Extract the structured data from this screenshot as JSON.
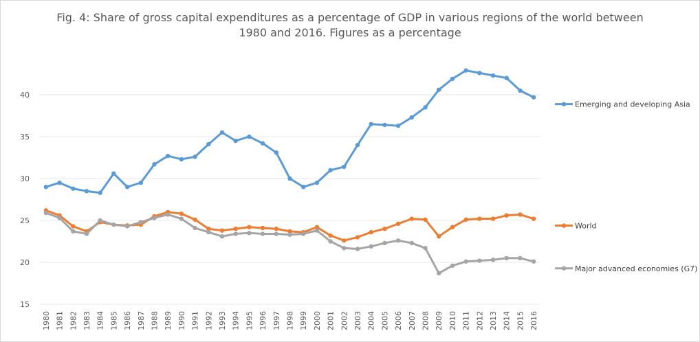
{
  "chart_data": {
    "type": "line",
    "title": "Fig. 4: Share of gross capital expenditures as a percentage of GDP in various regions of the world between",
    "title_line2": "1980 and 2016. Figures as a percentage",
    "xlabel": "",
    "ylabel": "",
    "ylim": [
      15,
      45
    ],
    "yticks": [
      15,
      20,
      25,
      30,
      35,
      40
    ],
    "grid": true,
    "legend_position": "right",
    "categories": [
      "1980",
      "1981",
      "1982",
      "1983",
      "1984",
      "1985",
      "1986",
      "1987",
      "1988",
      "1989",
      "1990",
      "1991",
      "1992",
      "1993",
      "1994",
      "1995",
      "1996",
      "1997",
      "1998",
      "1999",
      "2000",
      "2001",
      "2002",
      "2003",
      "2004",
      "2005",
      "2006",
      "2007",
      "2008",
      "2009",
      "2010",
      "2011",
      "2012",
      "2013",
      "2014",
      "2015",
      "2016"
    ],
    "series": [
      {
        "name": "Emerging and developing Asia",
        "color": "#5b9bd5",
        "values": [
          29.0,
          29.5,
          28.8,
          28.5,
          28.3,
          30.6,
          29.0,
          29.5,
          31.7,
          32.7,
          32.3,
          32.6,
          34.1,
          35.5,
          34.5,
          35.0,
          34.2,
          33.1,
          30.0,
          29.0,
          29.5,
          31.0,
          31.4,
          34.0,
          36.5,
          36.4,
          36.3,
          37.3,
          38.5,
          40.6,
          41.9,
          42.9,
          42.6,
          42.3,
          42.0,
          40.5,
          39.7
        ]
      },
      {
        "name": "World",
        "color": "#ed7d31",
        "values": [
          26.2,
          25.6,
          24.3,
          23.7,
          24.8,
          24.5,
          24.4,
          24.5,
          25.5,
          26.0,
          25.8,
          25.1,
          24.0,
          23.8,
          24.0,
          24.2,
          24.1,
          24.0,
          23.7,
          23.6,
          24.2,
          23.2,
          22.6,
          23.0,
          23.6,
          24.0,
          24.6,
          25.2,
          25.1,
          23.1,
          24.2,
          25.1,
          25.2,
          25.2,
          25.6,
          25.7,
          25.2
        ]
      },
      {
        "name": "Major advanced economies (G7)",
        "color": "#a5a5a5",
        "values": [
          25.9,
          25.3,
          23.7,
          23.4,
          25.0,
          24.5,
          24.3,
          24.8,
          25.3,
          25.7,
          25.2,
          24.1,
          23.6,
          23.1,
          23.4,
          23.5,
          23.4,
          23.4,
          23.3,
          23.4,
          23.8,
          22.5,
          21.7,
          21.6,
          21.9,
          22.3,
          22.6,
          22.3,
          21.7,
          18.7,
          19.6,
          20.1,
          20.2,
          20.3,
          20.5,
          20.5,
          20.1
        ]
      }
    ]
  }
}
